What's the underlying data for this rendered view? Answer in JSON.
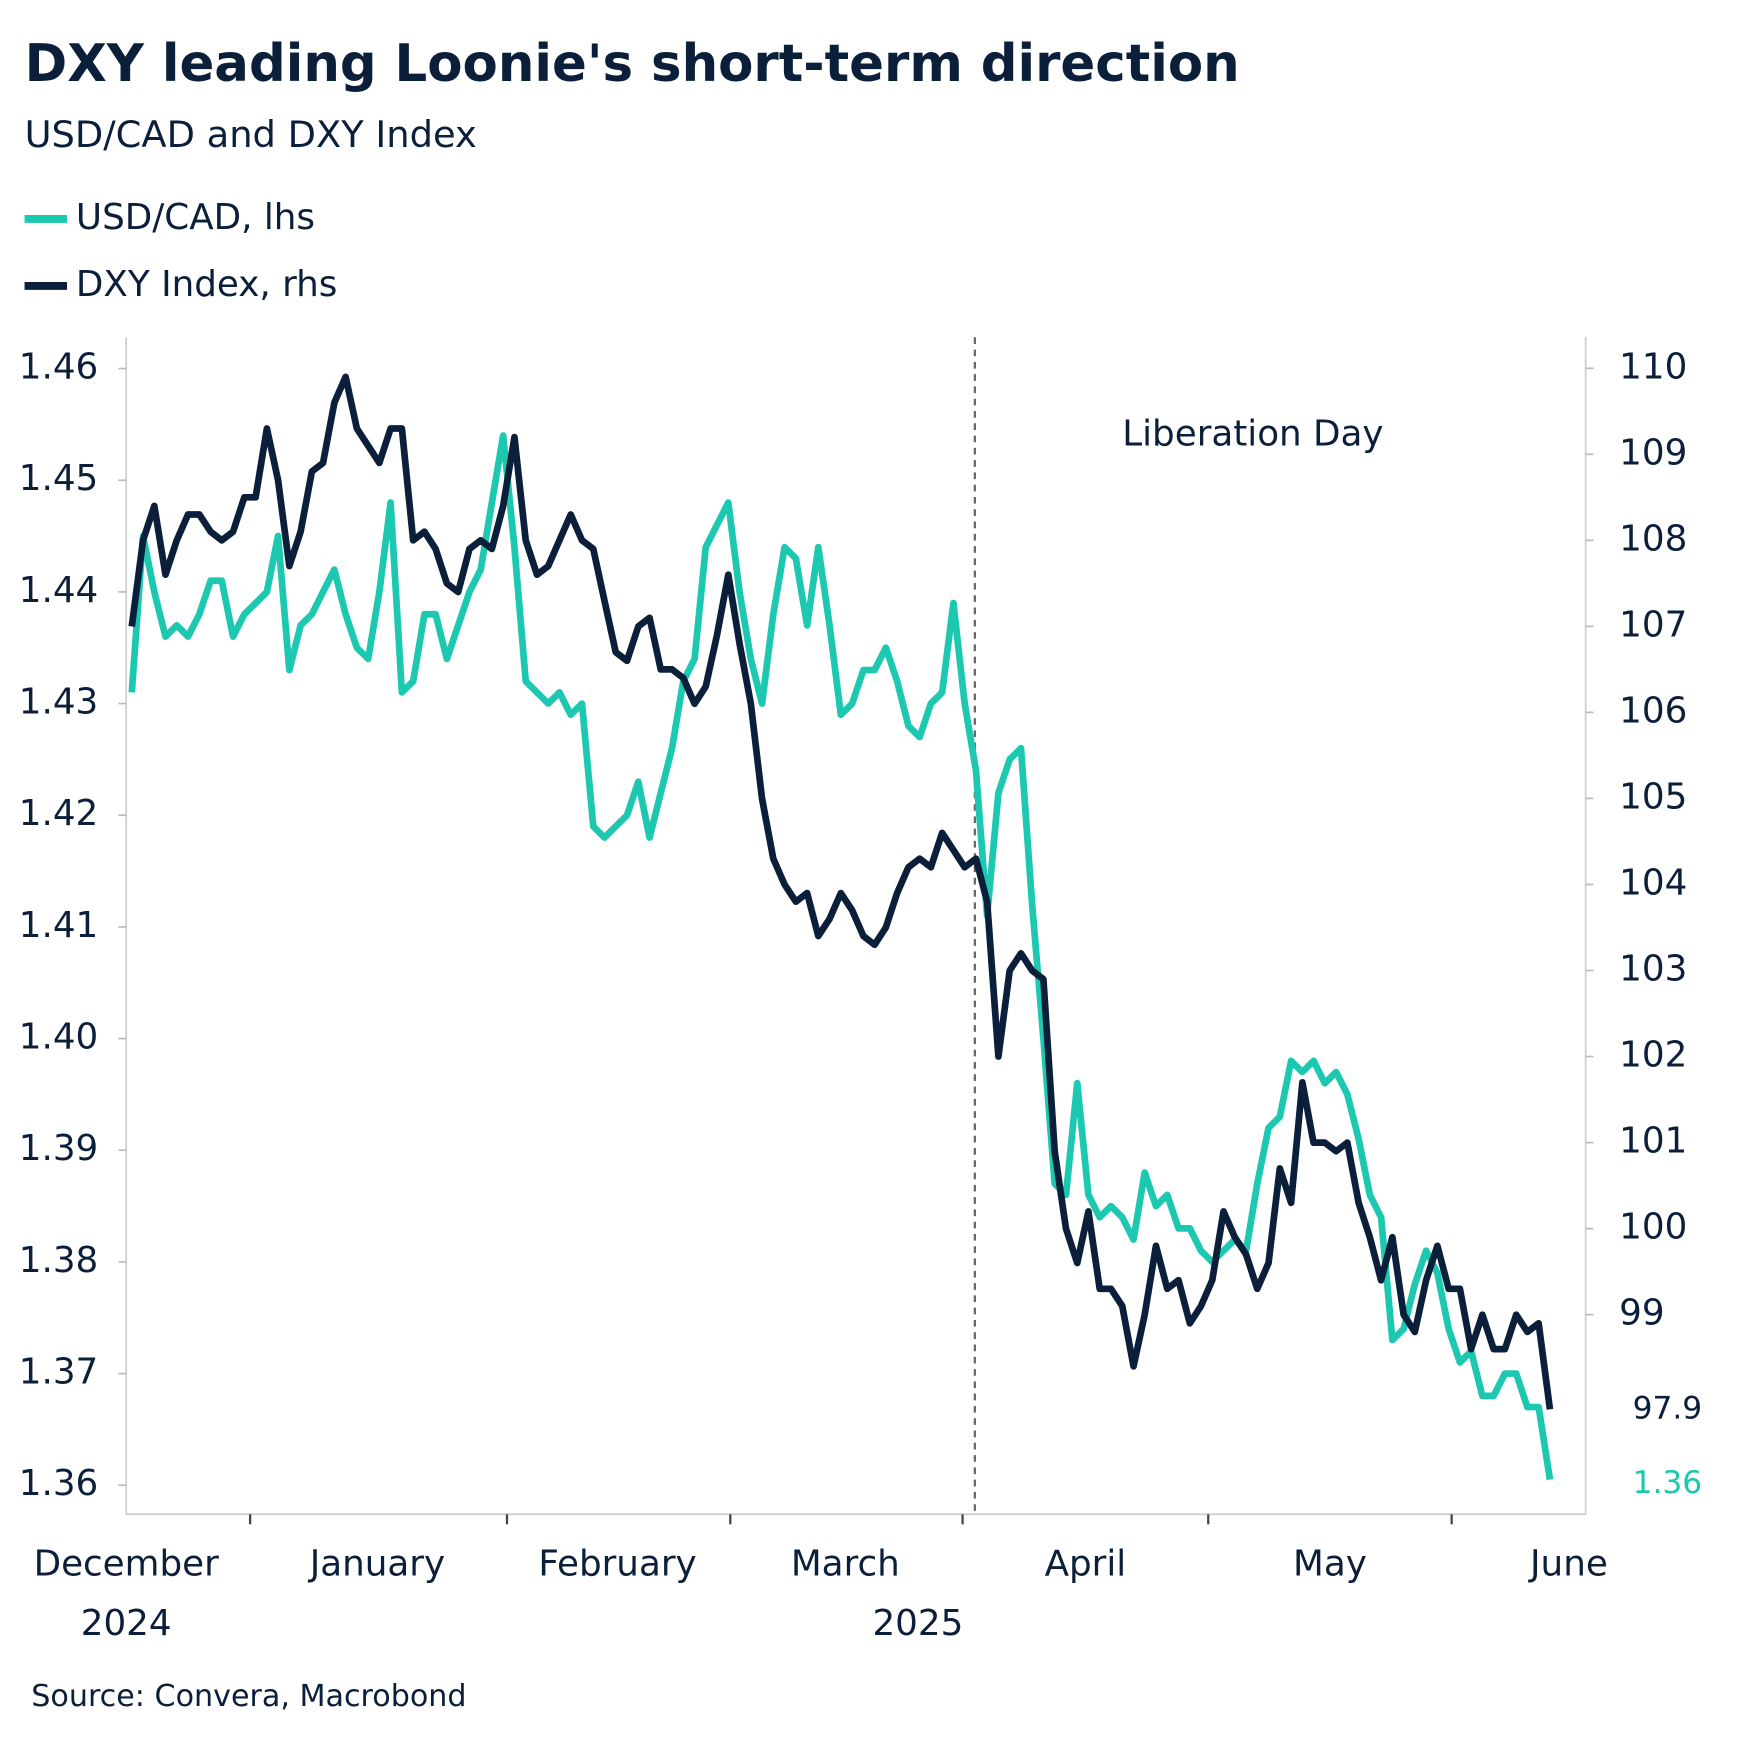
{
  "chart_data": {
    "type": "line",
    "title": "DXY leading Loonie's short-term direction",
    "subtitle": "USD/CAD and DXY Index",
    "source": "Source: Convera, Macrobond",
    "annotation": "Liberation Day",
    "months": [
      "December",
      "January",
      "February",
      "March",
      "April",
      "May",
      "June"
    ],
    "years": [
      "2024",
      "2025"
    ],
    "ylim": [
      1.3574,
      1.4628
    ],
    "yticks": [
      1.36,
      1.37,
      1.38,
      1.39,
      {
        "value": 1.4,
        "label": "1.40"
      },
      1.41,
      1.42,
      1.43,
      1.44,
      1.45,
      1.46
    ],
    "y2lim": [
      96.68,
      110.36
    ],
    "y2ticks": [
      99,
      100,
      101,
      102,
      103,
      104,
      105,
      106,
      107,
      108,
      109,
      110
    ],
    "series": [
      {
        "name": "USD/CAD, lhs",
        "color": "#1cc8b0",
        "end_label": "1.36",
        "values": [
          1.431,
          1.445,
          1.44,
          1.436,
          1.437,
          1.436,
          1.438,
          1.441,
          1.441,
          1.436,
          1.438,
          1.439,
          1.44,
          1.445,
          1.433,
          1.437,
          1.438,
          1.44,
          1.442,
          1.438,
          1.435,
          1.434,
          1.44,
          1.448,
          1.431,
          1.432,
          1.438,
          1.438,
          1.434,
          1.437,
          1.44,
          1.442,
          1.448,
          1.454,
          1.444,
          1.432,
          1.431,
          1.43,
          1.431,
          1.429,
          1.43,
          1.419,
          1.418,
          1.419,
          1.42,
          1.423,
          1.418,
          1.422,
          1.426,
          1.432,
          1.434,
          1.444,
          1.446,
          1.448,
          1.44,
          1.434,
          1.43,
          1.438,
          1.444,
          1.443,
          1.437,
          1.444,
          1.437,
          1.429,
          1.43,
          1.433,
          1.433,
          1.435,
          1.432,
          1.428,
          1.427,
          1.43,
          1.431,
          1.439,
          1.43,
          1.424,
          1.411,
          1.422,
          1.425,
          1.426,
          1.412,
          1.4,
          1.387,
          1.386,
          1.396,
          1.386,
          1.384,
          1.385,
          1.384,
          1.382,
          1.388,
          1.385,
          1.386,
          1.383,
          1.383,
          1.381,
          1.38,
          1.381,
          1.382,
          1.381,
          1.387,
          1.392,
          1.393,
          1.398,
          1.397,
          1.398,
          1.396,
          1.397,
          1.395,
          1.391,
          1.386,
          1.384,
          1.373,
          1.374,
          1.378,
          1.381,
          1.379,
          1.374,
          1.371,
          1.372,
          1.368,
          1.368,
          1.37,
          1.37,
          1.367,
          1.367,
          1.3605
        ]
      },
      {
        "name": "DXY Index, rhs",
        "color": "#0b1f3a",
        "axis": "y2",
        "end_label": "97.9",
        "values": [
          107.0,
          108.0,
          108.4,
          107.6,
          108.0,
          108.3,
          108.3,
          108.1,
          108.0,
          108.1,
          108.5,
          108.5,
          109.3,
          108.7,
          107.7,
          108.1,
          108.8,
          108.9,
          109.6,
          109.9,
          109.3,
          109.1,
          108.9,
          109.3,
          109.3,
          108.0,
          108.1,
          107.9,
          107.5,
          107.4,
          107.9,
          108.0,
          107.9,
          108.4,
          109.2,
          108.0,
          107.6,
          107.7,
          108.0,
          108.3,
          108.0,
          107.9,
          107.3,
          106.7,
          106.6,
          107.0,
          107.1,
          106.5,
          106.5,
          106.4,
          106.1,
          106.3,
          106.9,
          107.6,
          106.8,
          106.1,
          105.0,
          104.3,
          104.0,
          103.8,
          103.9,
          103.4,
          103.6,
          103.9,
          103.7,
          103.4,
          103.3,
          103.5,
          103.9,
          104.2,
          104.3,
          104.2,
          104.6,
          104.4,
          104.2,
          104.3,
          103.8,
          102.0,
          103.0,
          103.2,
          103.0,
          102.9,
          100.9,
          100.0,
          99.6,
          100.2,
          99.3,
          99.3,
          99.1,
          98.4,
          99.0,
          99.8,
          99.3,
          99.4,
          98.9,
          99.1,
          99.4,
          100.2,
          99.9,
          99.7,
          99.3,
          99.6,
          100.7,
          100.3,
          101.7,
          101.0,
          101.0,
          100.9,
          101.0,
          100.3,
          99.9,
          99.4,
          99.9,
          99.0,
          98.8,
          99.4,
          99.8,
          99.3,
          99.3,
          98.6,
          99.0,
          98.6,
          98.6,
          99.0,
          98.8,
          98.9,
          97.9
        ]
      }
    ]
  }
}
